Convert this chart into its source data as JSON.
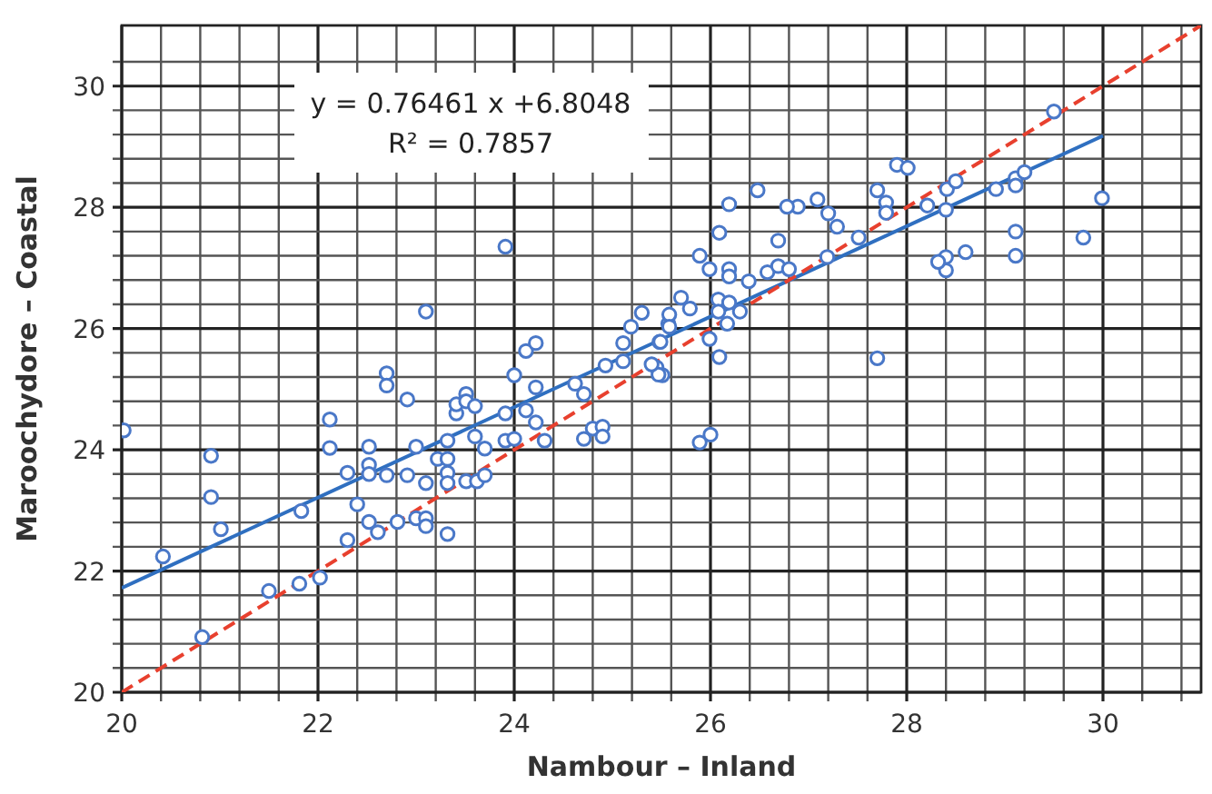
{
  "chart_data": {
    "type": "scatter",
    "xlabel": "Nambour – Inland",
    "ylabel": "Maroochydore – Coastal",
    "annotations": [
      "y = 0.76461 x +6.8048",
      "R² = 0.7857"
    ],
    "xlim": [
      20,
      31
    ],
    "ylim": [
      20,
      31
    ],
    "xticks": [
      20,
      {
        "value": 20.4,
        "label": null
      },
      {
        "value": 20.8,
        "label": null
      },
      {
        "value": 21.2,
        "label": null
      },
      {
        "value": 21.6,
        "label": null
      },
      22,
      {
        "value": 22.4,
        "label": null
      },
      {
        "value": 22.8,
        "label": null
      },
      {
        "value": 23.2,
        "label": null
      },
      {
        "value": 23.6,
        "label": null
      },
      24,
      {
        "value": 24.4,
        "label": null
      },
      {
        "value": 24.8,
        "label": null
      },
      {
        "value": 25.2,
        "label": null
      },
      {
        "value": 25.6,
        "label": null
      },
      26,
      {
        "value": 26.4,
        "label": null
      },
      {
        "value": 26.8,
        "label": null
      },
      {
        "value": 27.2,
        "label": null
      },
      {
        "value": 27.6,
        "label": null
      },
      28,
      {
        "value": 28.4,
        "label": null
      },
      {
        "value": 28.8,
        "label": null
      },
      {
        "value": 29.2,
        "label": null
      },
      {
        "value": 29.6,
        "label": null
      },
      30,
      {
        "value": 30.4,
        "label": null
      },
      {
        "value": 30.8,
        "label": null
      }
    ],
    "yticks": [
      20,
      {
        "value": 20.4,
        "label": null
      },
      {
        "value": 20.8,
        "label": null
      },
      {
        "value": 21.2,
        "label": null
      },
      {
        "value": 21.6,
        "label": null
      },
      22,
      {
        "value": 22.4,
        "label": null
      },
      {
        "value": 22.8,
        "label": null
      },
      {
        "value": 23.2,
        "label": null
      },
      {
        "value": 23.6,
        "label": null
      },
      24,
      {
        "value": 24.4,
        "label": null
      },
      {
        "value": 24.8,
        "label": null
      },
      {
        "value": 25.2,
        "label": null
      },
      {
        "value": 25.6,
        "label": null
      },
      26,
      {
        "value": 26.4,
        "label": null
      },
      {
        "value": 26.8,
        "label": null
      },
      {
        "value": 27.2,
        "label": null
      },
      {
        "value": 27.6,
        "label": null
      },
      28,
      {
        "value": 28.4,
        "label": null
      },
      {
        "value": 28.8,
        "label": null
      },
      {
        "value": 29.2,
        "label": null
      },
      {
        "value": 29.6,
        "label": null
      },
      30,
      {
        "value": 30.4,
        "label": null
      }
    ],
    "grid": true,
    "series": [
      {
        "color": "#4a78c8",
        "marker": "circle",
        "x": [
          20.02,
          20.42,
          20.91,
          20.91,
          21.01,
          20.82,
          21.5,
          21.81,
          22.02,
          21.83,
          22.12,
          22.12,
          22.3,
          22.4,
          22.3,
          22.52,
          22.52,
          22.52,
          22.52,
          22.61,
          22.7,
          22.7,
          22.7,
          22.91,
          22.81,
          22.91,
          23.0,
          23.0,
          23.1,
          23.1,
          23.1,
          23.22,
          23.32,
          23.32,
          23.32,
          23.32,
          23.32,
          23.41,
          23.41,
          23.51,
          23.51,
          23.6,
          23.51,
          23.6,
          23.62,
          23.7,
          23.7,
          23.91,
          23.91,
          24.0,
          24.0,
          24.12,
          24.22,
          24.22,
          24.31,
          24.12,
          24.22,
          24.62,
          24.71,
          24.71,
          24.8,
          24.9,
          24.9,
          24.93,
          25.11,
          25.45,
          25.51,
          25.11,
          23.91,
          23.1,
          25.19,
          25.3,
          25.57,
          25.48,
          29.5,
          29.99,
          29.8,
          29.11,
          29.11,
          29.11,
          29.11,
          29.2,
          28.91,
          28.6,
          28.4,
          28.4,
          28.4,
          28.41,
          28.5,
          28.21,
          27.9,
          28.01,
          27.7,
          27.79,
          27.79,
          27.51,
          27.29,
          27.2,
          27.09,
          26.89,
          26.78,
          26.48,
          26.19,
          26.09,
          26.69,
          27.19,
          25.89,
          25.99,
          26.19,
          26.19,
          26.39,
          26.58,
          26.69,
          26.8,
          25.7,
          25.58,
          25.79,
          26.08,
          26.08,
          26.19,
          26.17,
          26.3,
          25.99,
          26.09,
          25.49,
          25.58,
          27.7,
          28.32,
          25.89,
          26.0,
          25.47,
          25.4
        ],
        "values": [
          24.32,
          22.24,
          23.9,
          23.22,
          22.69,
          20.91,
          21.67,
          21.79,
          21.89,
          22.99,
          24.5,
          24.03,
          23.62,
          23.1,
          22.51,
          24.05,
          23.75,
          23.6,
          22.81,
          22.64,
          25.26,
          25.06,
          23.58,
          24.83,
          22.81,
          23.58,
          24.05,
          22.87,
          23.45,
          22.87,
          22.74,
          23.85,
          24.15,
          23.85,
          23.62,
          23.45,
          22.61,
          24.6,
          24.75,
          24.92,
          24.8,
          24.72,
          23.48,
          24.22,
          23.48,
          24.02,
          23.58,
          24.6,
          24.15,
          25.23,
          24.18,
          24.65,
          25.03,
          24.45,
          24.15,
          25.63,
          25.76,
          25.09,
          24.92,
          24.18,
          24.35,
          24.38,
          24.22,
          25.39,
          25.46,
          25.36,
          25.23,
          25.76,
          27.35,
          26.28,
          26.03,
          26.26,
          26.08,
          25.78,
          29.58,
          28.15,
          27.5,
          27.6,
          27.2,
          28.48,
          28.36,
          28.58,
          28.3,
          27.26,
          27.18,
          26.96,
          27.96,
          28.3,
          28.43,
          28.03,
          28.7,
          28.65,
          28.28,
          28.08,
          27.91,
          27.5,
          27.68,
          27.9,
          28.13,
          28.01,
          28.01,
          28.28,
          28.05,
          27.58,
          27.45,
          27.18,
          27.2,
          26.98,
          26.98,
          26.86,
          26.78,
          26.93,
          27.03,
          26.98,
          26.51,
          26.23,
          26.33,
          26.48,
          26.28,
          26.43,
          26.08,
          26.28,
          25.83,
          25.53,
          25.78,
          26.03,
          25.51,
          27.1,
          24.12,
          24.25,
          25.24,
          25.41
        ]
      },
      {
        "type": "line",
        "color": "#2f6fc0",
        "line_style": "solid",
        "marker": "none",
        "x": [
          20,
          30
        ],
        "values": [
          21.72,
          29.18
        ]
      },
      {
        "type": "line",
        "color": "#e8402e",
        "line_style": "dashed",
        "marker": "none",
        "x": [
          20,
          31
        ],
        "values": [
          20,
          31
        ]
      }
    ]
  }
}
